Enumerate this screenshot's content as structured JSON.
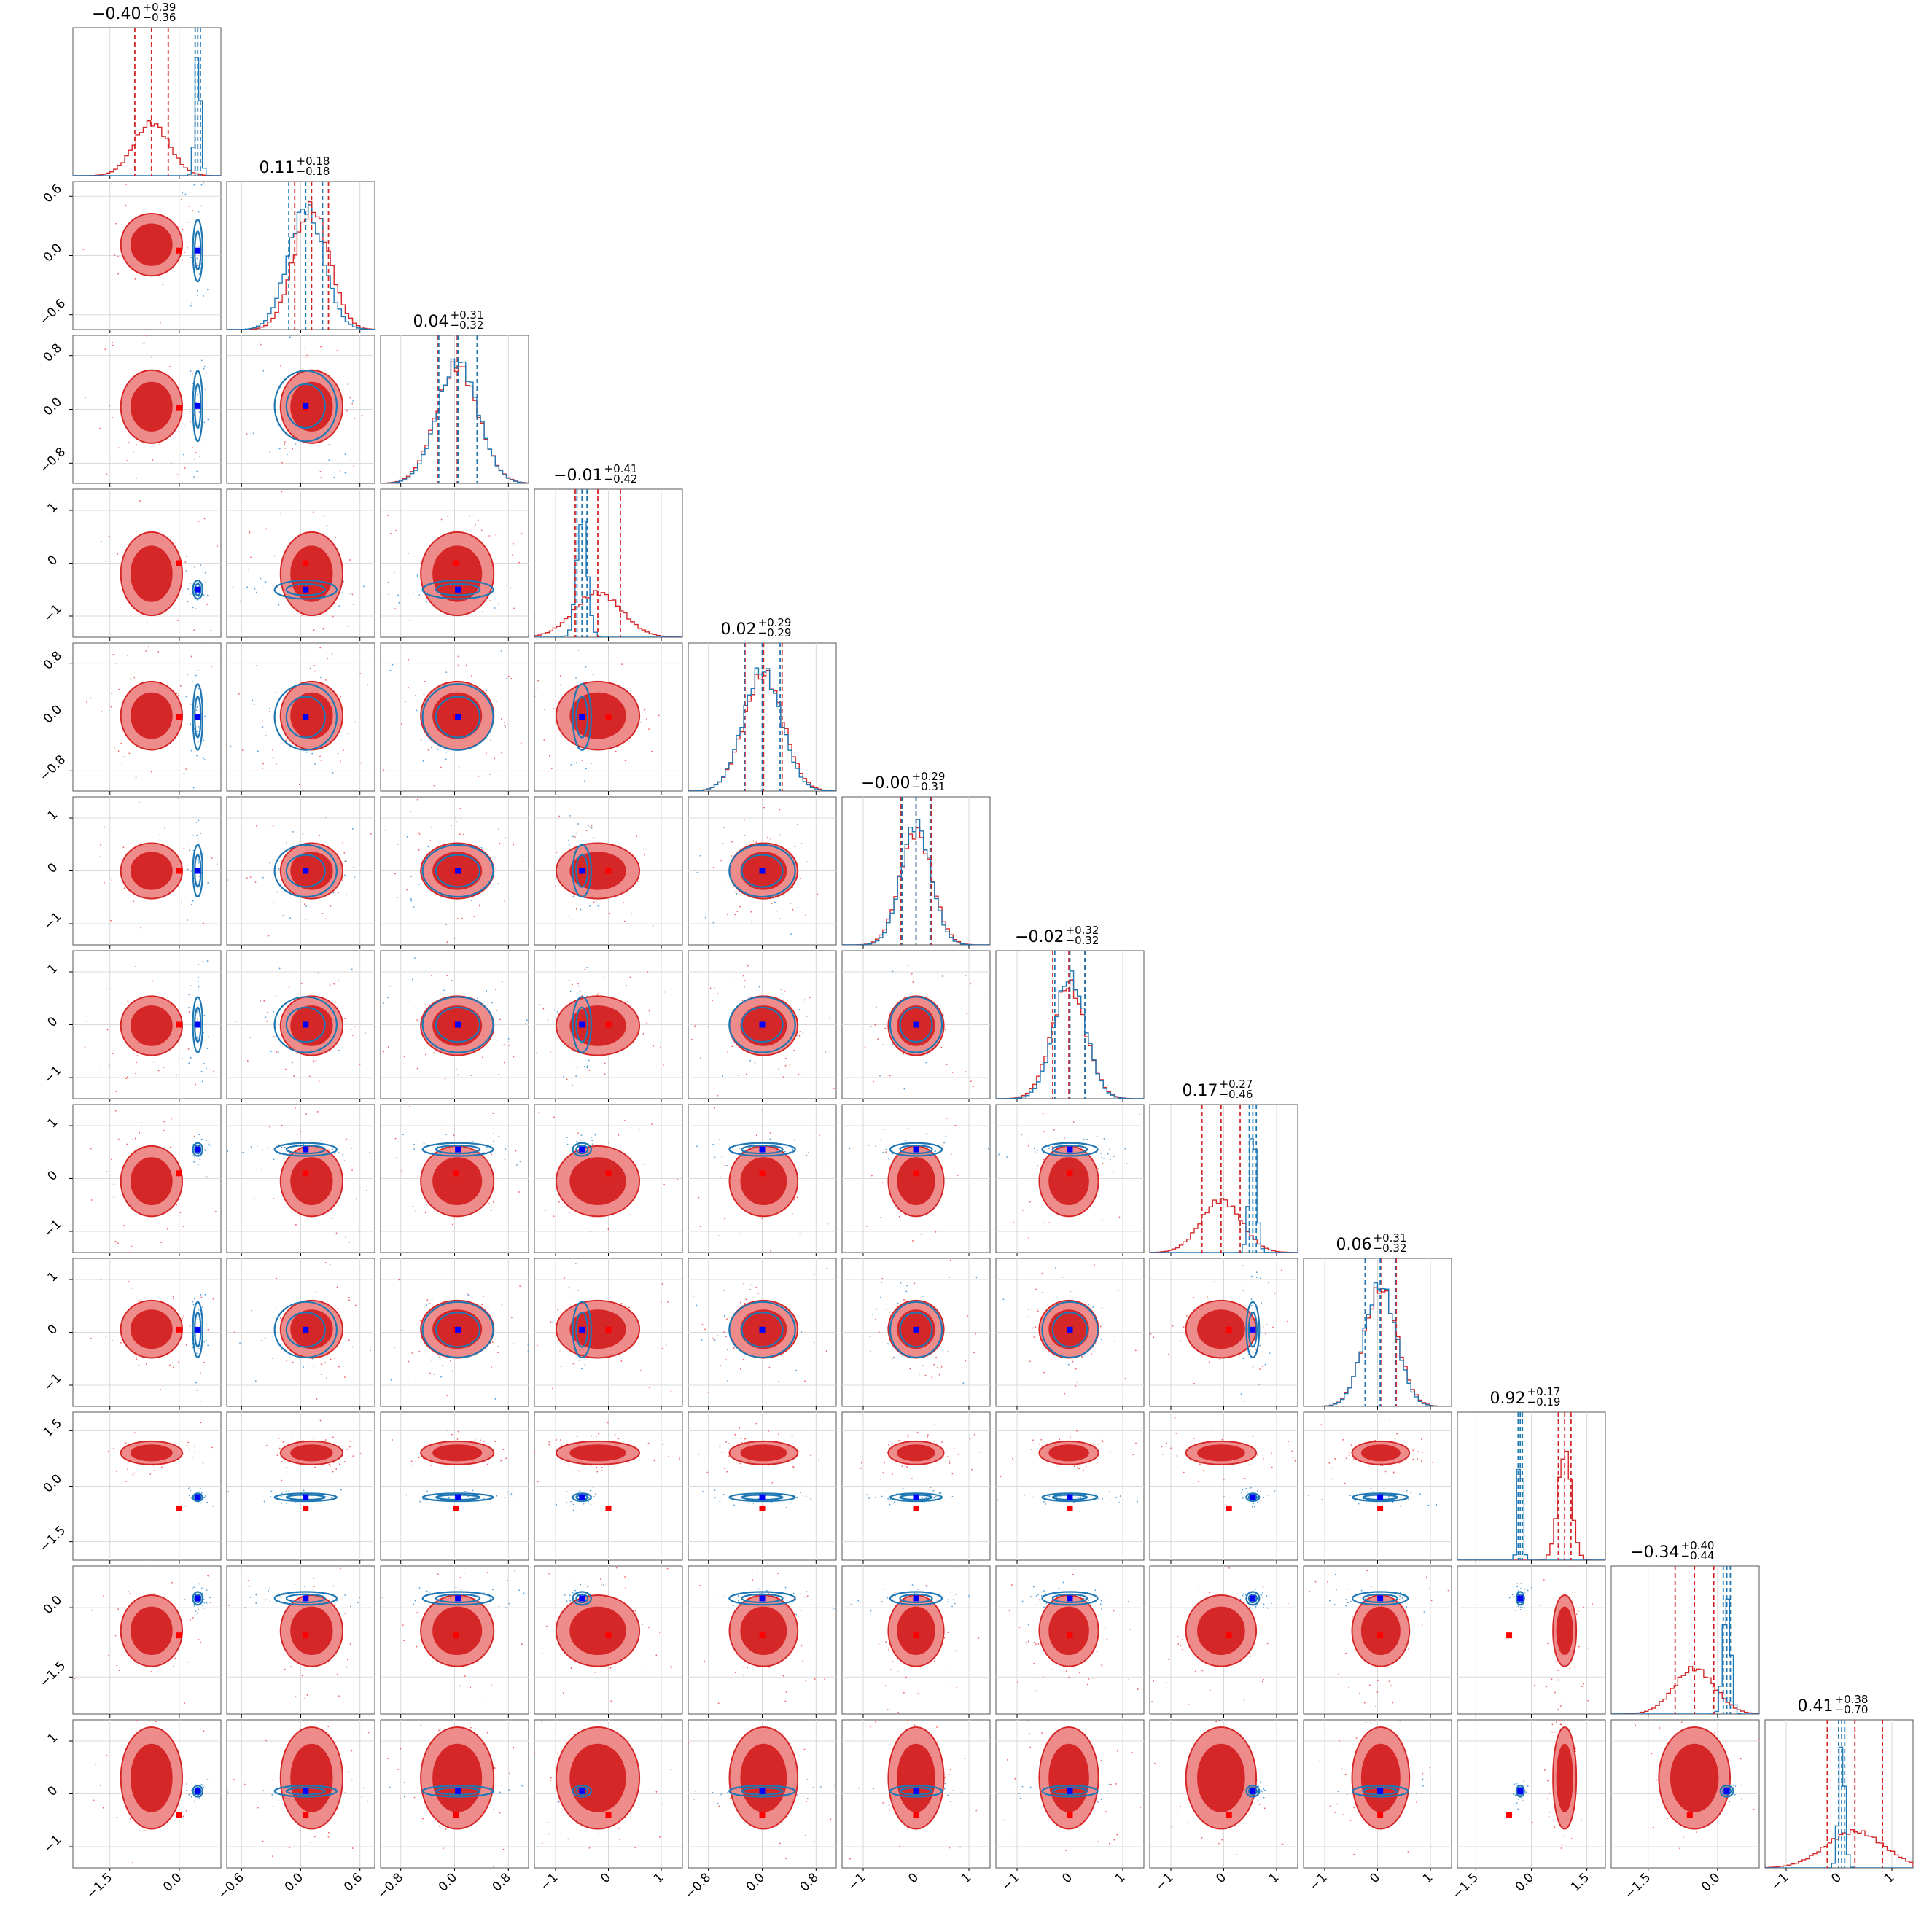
{
  "chart_data": {
    "type": "corner",
    "n_params": 12,
    "series": [
      {
        "color": "#d62728",
        "fill_inner": "#d62728",
        "fill_outer": "#ee8c8c"
      },
      {
        "color": "#1f77b4"
      }
    ],
    "colors": {
      "truth_red": "#ff0000",
      "truth_blue": "#0000ff"
    },
    "grid": true,
    "titles": [
      {
        "median": "−0.40",
        "plus": "+0.39",
        "minus": "−0.36"
      },
      {
        "median": "0.11",
        "plus": "+0.18",
        "minus": "−0.18"
      },
      {
        "median": "0.04",
        "plus": "+0.31",
        "minus": "−0.32"
      },
      {
        "median": "−0.01",
        "plus": "+0.41",
        "minus": "−0.42"
      },
      {
        "median": "0.02",
        "plus": "+0.29",
        "minus": "−0.29"
      },
      {
        "median": "−0.00",
        "plus": "+0.29",
        "minus": "−0.31"
      },
      {
        "median": "−0.02",
        "plus": "+0.32",
        "minus": "−0.32"
      },
      {
        "median": "0.17",
        "plus": "+0.27",
        "minus": "−0.46"
      },
      {
        "median": "0.06",
        "plus": "+0.31",
        "minus": "−0.32"
      },
      {
        "median": "0.92",
        "plus": "+0.17",
        "minus": "−0.19"
      },
      {
        "median": "−0.34",
        "plus": "+0.40",
        "minus": "−0.44"
      },
      {
        "median": "0.41",
        "plus": "+0.38",
        "minus": "−0.70"
      }
    ],
    "x_ticks": [
      [
        "−1.5",
        "0.0"
      ],
      [
        "−0.6",
        "0.0",
        "0.6"
      ],
      [
        "−0.8",
        "0.0",
        "0.8"
      ],
      [
        "−1",
        "0",
        "1"
      ],
      [
        "−0.8",
        "0.0",
        "0.8"
      ],
      [
        "−1",
        "0",
        "1"
      ],
      [
        "−1",
        "0",
        "1"
      ],
      [
        "−1",
        "0",
        "1"
      ],
      [
        "−1",
        "0",
        "1"
      ],
      [
        "−1.5",
        "0.0",
        "1.5"
      ],
      [
        "−1.5",
        "0.0"
      ],
      [
        "−1",
        "0",
        "1"
      ]
    ],
    "y_ticks": [
      [],
      [
        "0.6",
        "0.0",
        "−0.6"
      ],
      [
        "0.8",
        "0.0",
        "−0.8"
      ],
      [
        "1",
        "0",
        "−1"
      ],
      [
        "0.8",
        "0.0",
        "−0.8"
      ],
      [
        "1",
        "0",
        "−1"
      ],
      [
        "1",
        "0",
        "−1"
      ],
      [
        "1",
        "0",
        "−1"
      ],
      [
        "1",
        "0",
        "−1"
      ],
      [
        "1.5",
        "0.0",
        "−1.5"
      ],
      [
        "0.0",
        "−1.5"
      ],
      [
        "1",
        "0",
        "−1"
      ]
    ],
    "ranges": [
      [
        -2.3,
        0.9
      ],
      [
        -0.75,
        0.75
      ],
      [
        -1.1,
        1.1
      ],
      [
        -1.4,
        1.4
      ],
      [
        -1.1,
        1.1
      ],
      [
        -1.4,
        1.4
      ],
      [
        -1.4,
        1.4
      ],
      [
        -1.4,
        1.4
      ],
      [
        -1.4,
        1.4
      ],
      [
        -2.0,
        2.0
      ],
      [
        -2.3,
        0.9
      ],
      [
        -1.4,
        1.4
      ]
    ],
    "x_tick_values": [
      [
        -1.5,
        0.0
      ],
      [
        -0.6,
        0.0,
        0.6
      ],
      [
        -0.8,
        0.0,
        0.8
      ],
      [
        -1,
        0,
        1
      ],
      [
        -0.8,
        0.0,
        0.8
      ],
      [
        -1,
        0,
        1
      ],
      [
        -1,
        0,
        1
      ],
      [
        -1,
        0,
        1
      ],
      [
        -1,
        0,
        1
      ],
      [
        -1.5,
        0.0,
        1.5
      ],
      [
        -1.5,
        0.0
      ],
      [
        -1,
        0,
        1
      ]
    ],
    "y_tick_values": [
      [],
      [
        0.6,
        0.0,
        -0.6
      ],
      [
        0.8,
        0.0,
        -0.8
      ],
      [
        1,
        0,
        -1
      ],
      [
        0.8,
        0.0,
        -0.8
      ],
      [
        1,
        0,
        -1
      ],
      [
        1,
        0,
        -1
      ],
      [
        1,
        0,
        -1
      ],
      [
        1,
        0,
        -1
      ],
      [
        1.5,
        0.0,
        -1.5
      ],
      [
        0.0,
        -1.5
      ],
      [
        1,
        0,
        -1
      ]
    ],
    "red_posterior": {
      "mean": [
        -0.6,
        0.11,
        0.04,
        -0.2,
        0.02,
        0.0,
        -0.02,
        -0.05,
        0.06,
        0.9,
        -0.5,
        0.3
      ],
      "sd": [
        0.38,
        0.18,
        0.31,
        0.45,
        0.29,
        0.3,
        0.32,
        0.38,
        0.31,
        0.18,
        0.44,
        0.55
      ]
    },
    "blue_posterior": {
      "mean": [
        0.4,
        0.05,
        0.05,
        -0.5,
        0.0,
        0.0,
        0.0,
        0.55,
        0.05,
        -0.3,
        0.2,
        0.05
      ],
      "sd": [
        0.06,
        0.18,
        0.3,
        0.1,
        0.28,
        0.28,
        0.3,
        0.07,
        0.3,
        0.06,
        0.08,
        0.06
      ]
    },
    "truth_blue": [
      0.4,
      0.05,
      0.05,
      -0.5,
      0.0,
      0.0,
      0.0,
      0.55,
      0.05,
      -0.3,
      0.2,
      0.05
    ],
    "truth_red": [
      0.0,
      0.05,
      0.02,
      0.0,
      0.0,
      0.0,
      0.0,
      0.1,
      0.05,
      -0.6,
      -0.6,
      -0.4
    ]
  }
}
